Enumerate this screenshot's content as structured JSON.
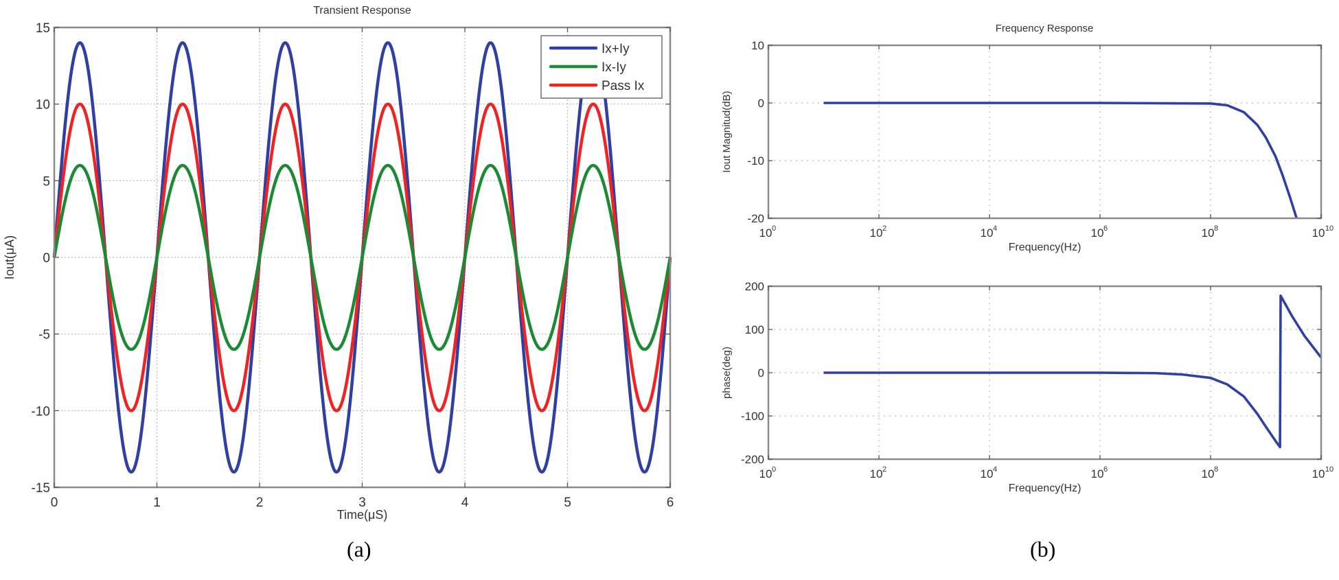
{
  "figure": {
    "caption_a": "(a)",
    "caption_b": "(b)"
  },
  "colors": {
    "blue": "#2f3fa3",
    "green": "#1b8a34",
    "red": "#ef2323",
    "axis": "#8a8a8a",
    "grid": "#b8b8b8"
  },
  "chart_data": [
    {
      "id": "transient",
      "type": "line",
      "title": "Transient Response",
      "xlabel": "Time(μS)",
      "ylabel": "Iout(μA)",
      "xlim": [
        0,
        6
      ],
      "ylim": [
        -15,
        15
      ],
      "xticks": [
        0,
        1,
        2,
        3,
        4,
        5,
        6
      ],
      "yticks": [
        -15,
        -10,
        -5,
        0,
        5,
        10,
        15
      ],
      "grid": true,
      "legend_position": "upper right",
      "series": [
        {
          "name": "Ix+Iy",
          "color": "#2f3fa3",
          "function": "sine",
          "amplitude": 14,
          "period_us": 1.0,
          "phase": 0
        },
        {
          "name": "Ix-Iy",
          "color": "#1b8a34",
          "function": "sine",
          "amplitude": 6,
          "period_us": 1.0,
          "phase": 0
        },
        {
          "name": "Pass Ix",
          "color": "#ef2323",
          "function": "sine",
          "amplitude": 10,
          "period_us": 1.0,
          "phase": 0
        }
      ],
      "key_points": {
        "peaks_x": [
          0.25,
          1.25,
          2.25,
          3.25,
          4.25,
          5.25
        ],
        "troughs_x": [
          0.75,
          1.75,
          2.75,
          3.75,
          4.75,
          5.75
        ],
        "zero_crossings_x": [
          0,
          0.5,
          1,
          1.5,
          2,
          2.5,
          3,
          3.5,
          4,
          4.5,
          5,
          5.5,
          6
        ]
      }
    },
    {
      "id": "magnitude",
      "type": "line",
      "title": "Frequency Response",
      "xlabel": "Frequency(Hz)",
      "ylabel": "Iout Magnitud(dB)",
      "xscale": "log",
      "xlim": [
        1,
        10000000000
      ],
      "ylim": [
        -20,
        10
      ],
      "xticks": [
        "10^0",
        "10^2",
        "10^4",
        "10^6",
        "10^8",
        "10^10"
      ],
      "yticks": [
        -20,
        -10,
        0,
        10
      ],
      "grid": true,
      "series": [
        {
          "name": "Magnitude",
          "color": "#2f3fa3",
          "points": [
            [
              10,
              0
            ],
            [
              100,
              0
            ],
            [
              10000,
              0
            ],
            [
              1000000,
              0
            ],
            [
              100000000,
              -0.1
            ],
            [
              200000000,
              -0.4
            ],
            [
              400000000,
              -1.6
            ],
            [
              700000000,
              -3.8
            ],
            [
              1000000000,
              -6.0
            ],
            [
              1500000000,
              -9.3
            ],
            [
              2000000000,
              -12.5
            ],
            [
              2700000000,
              -16.2
            ],
            [
              3600000000,
              -20
            ]
          ]
        }
      ]
    },
    {
      "id": "phase",
      "type": "line",
      "xlabel": "Frequency(Hz)",
      "ylabel": "phase(deg)",
      "xscale": "log",
      "xlim": [
        1,
        10000000000
      ],
      "ylim": [
        -200,
        200
      ],
      "xticks": [
        "10^0",
        "10^2",
        "10^4",
        "10^6",
        "10^8",
        "10^10"
      ],
      "yticks": [
        -200,
        -100,
        0,
        100,
        200
      ],
      "grid": true,
      "series": [
        {
          "name": "Phase",
          "color": "#2f3fa3",
          "points": [
            [
              10,
              0
            ],
            [
              1000,
              0
            ],
            [
              1000000,
              0
            ],
            [
              10000000,
              -1
            ],
            [
              30000000,
              -4
            ],
            [
              100000000,
              -12
            ],
            [
              200000000,
              -27
            ],
            [
              400000000,
              -55
            ],
            [
              700000000,
              -95
            ],
            [
              1000000000,
              -125
            ],
            [
              1500000000,
              -158
            ],
            [
              1800000000,
              -172
            ],
            [
              1850000000,
              178
            ],
            [
              3000000000,
              130
            ],
            [
              5000000000,
              85
            ],
            [
              10000000000,
              35
            ]
          ]
        }
      ]
    }
  ]
}
